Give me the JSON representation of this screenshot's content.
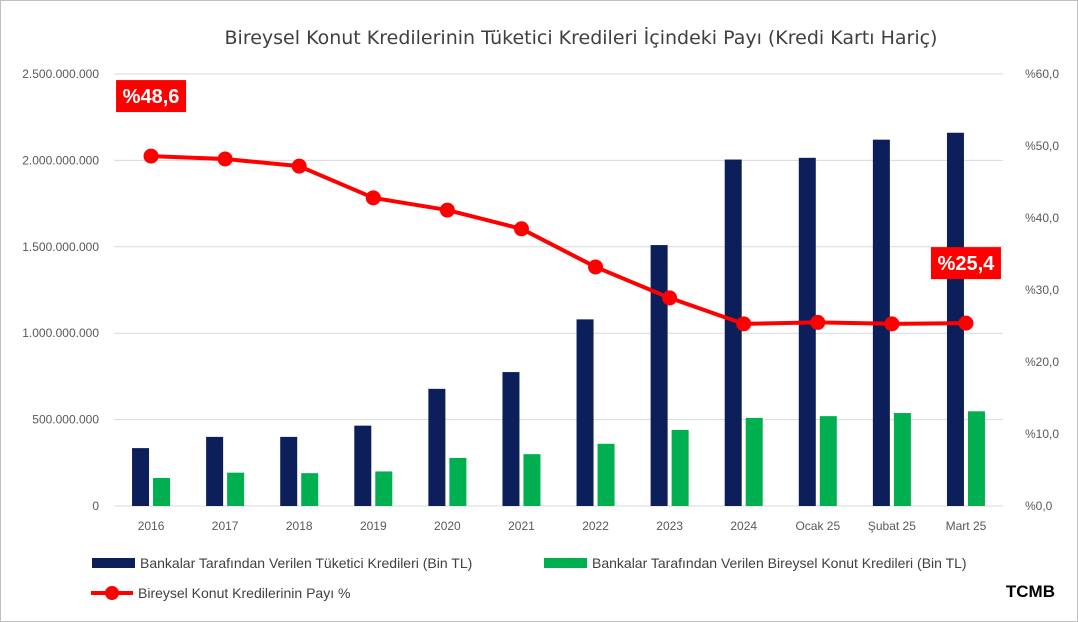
{
  "chart_data": {
    "type": "bar",
    "title": "Bireysel Konut Kredilerinin Tüketici Kredileri İçindeki Payı (Kredi Kartı Hariç)",
    "categories": [
      "2016",
      "2017",
      "2018",
      "2019",
      "2020",
      "2021",
      "2022",
      "2023",
      "2024",
      "Ocak 25",
      "Şubat 25",
      "Mart 25"
    ],
    "series": [
      {
        "name": "Bankalar Tarafından Verilen Tüketici Kredileri (Bin TL)",
        "type": "bar",
        "axis": "left",
        "color": "#0c1f5b",
        "values": [
          335000000,
          400000000,
          400000000,
          465000000,
          678000000,
          775000000,
          1080000000,
          1510000000,
          2005000000,
          2015000000,
          2120000000,
          2160000000
        ]
      },
      {
        "name": "Bankalar Tarafından Verilen Bireysel Konut Kredileri (Bin TL)",
        "type": "bar",
        "axis": "left",
        "color": "#00b050",
        "values": [
          162000000,
          193000000,
          190000000,
          200000000,
          278000000,
          300000000,
          360000000,
          440000000,
          510000000,
          520000000,
          538000000,
          548000000
        ]
      },
      {
        "name": "Bireysel Konut Kredilerinin Payı %",
        "type": "line",
        "axis": "right",
        "color": "#ff0000",
        "values": [
          48.6,
          48.2,
          47.2,
          42.8,
          41.1,
          38.5,
          33.2,
          28.9,
          25.3,
          25.5,
          25.3,
          25.4
        ]
      }
    ],
    "left_axis": {
      "ylim": [
        0,
        2500000000
      ],
      "ticks": [
        "0",
        "500.000.000",
        "1.000.000.000",
        "1.500.000.000",
        "2.000.000.000",
        "2.500.000.000"
      ]
    },
    "right_axis": {
      "ylim": [
        0,
        60
      ],
      "ticks": [
        "%0,0",
        "%10,0",
        "%20,0",
        "%30,0",
        "%40,0",
        "%50,0",
        "%60,0"
      ]
    },
    "annotations": [
      {
        "text": "%48,6",
        "category": "2016"
      },
      {
        "text": "%25,4",
        "category": "Mart 25"
      }
    ],
    "grid": true,
    "legend": "bottom"
  },
  "source": "TCMB",
  "colors": {
    "accent": "#ff0000",
    "bar_primary": "#0c1f5b",
    "bar_secondary": "#00b050",
    "grid": "#d9d9d9"
  }
}
